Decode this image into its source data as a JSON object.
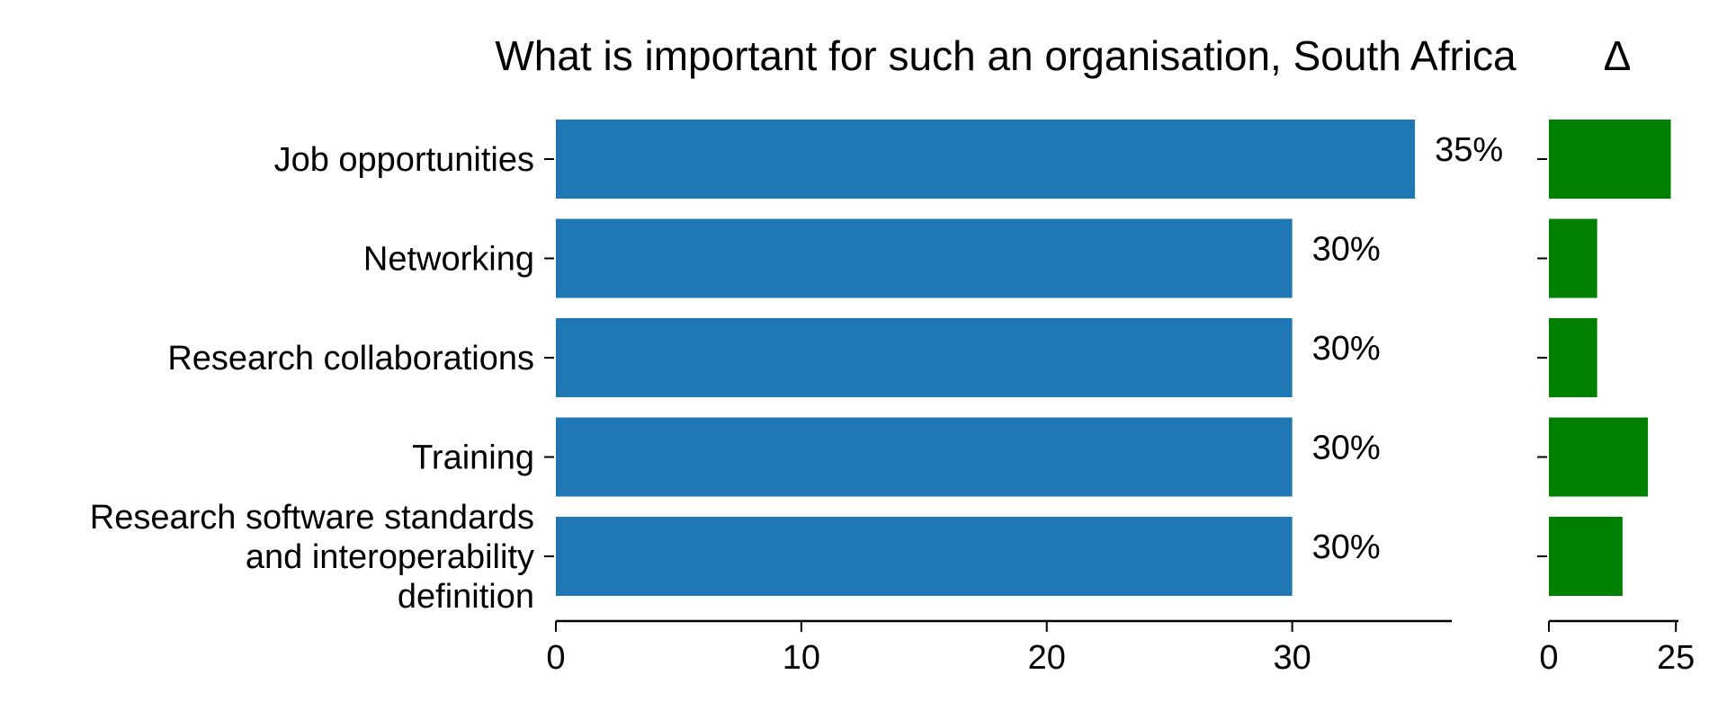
{
  "chart_data": [
    {
      "type": "bar",
      "orientation": "horizontal",
      "title": "What is important for such an organisation, South Africa",
      "categories": [
        "Job opportunities",
        "Networking",
        "Research collaborations",
        "Training",
        "Research software standards and interoperability definition"
      ],
      "category_lines": [
        [
          "Job opportunities"
        ],
        [
          "Networking"
        ],
        [
          "Research collaborations"
        ],
        [
          "Training"
        ],
        [
          "Research software standards",
          "and interoperability",
          "definition"
        ]
      ],
      "values": [
        35,
        30,
        30,
        30,
        30
      ],
      "data_labels": [
        "35%",
        "30%",
        "30%",
        "30%",
        "30%"
      ],
      "xlim": [
        0,
        36.5
      ],
      "xticks": [
        0,
        10,
        20,
        30
      ],
      "xtick_labels": [
        "0",
        "10",
        "20",
        "30"
      ],
      "color": "#1f77b4",
      "grid": false
    },
    {
      "type": "bar",
      "orientation": "horizontal",
      "title": "Δ",
      "categories": [
        "Job opportunities",
        "Networking",
        "Research collaborations",
        "Training",
        "Research software standards and interoperability definition"
      ],
      "values": [
        24,
        9.5,
        9.5,
        19.5,
        14.5
      ],
      "xlim": [
        0,
        25.5
      ],
      "xticks": [
        0,
        25
      ],
      "xtick_labels": [
        "0",
        "25"
      ],
      "color": "#008000",
      "grid": false
    }
  ]
}
